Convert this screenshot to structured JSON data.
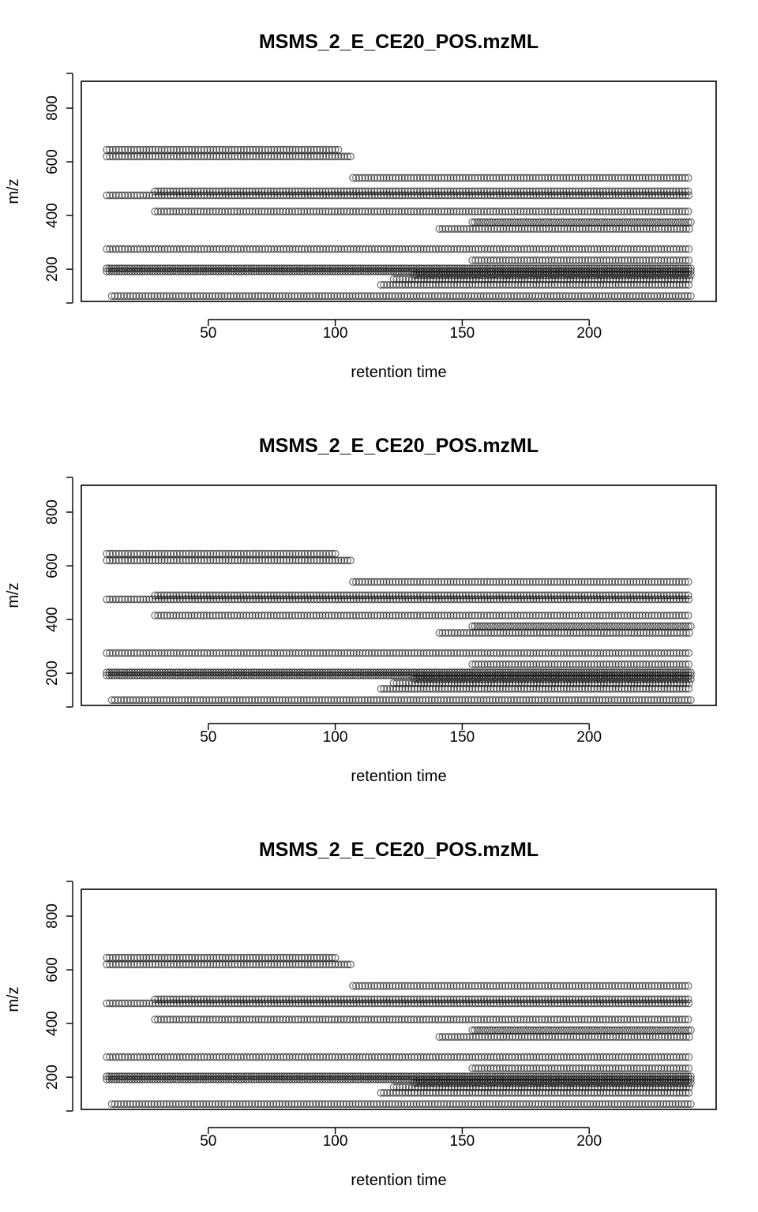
{
  "chart_data": [
    {
      "type": "scatter",
      "title": "MSMS_2_E_CE20_POS.mzML",
      "xlabel": "retention time",
      "ylabel": "m/z",
      "xticks": [
        50,
        100,
        150,
        200
      ],
      "yticks": [
        200,
        400,
        600,
        800
      ],
      "xlim": [
        0,
        250
      ],
      "ylim": [
        80,
        900
      ],
      "grid": false,
      "point_style": "open circle, semi-transparent black",
      "traces": [
        {
          "mz": 645,
          "rt_start": 10,
          "rt_end": 102,
          "rt_step": 1.2
        },
        {
          "mz": 620,
          "rt_start": 10,
          "rt_end": 107,
          "rt_step": 1.2
        },
        {
          "mz": 540,
          "rt_start": 107,
          "rt_end": 240,
          "rt_step": 1.2
        },
        {
          "mz": 490,
          "rt_start": 29,
          "rt_end": 240,
          "rt_step": 1.2
        },
        {
          "mz": 475,
          "rt_start": 10,
          "rt_end": 240,
          "rt_step": 1.2
        },
        {
          "mz": 415,
          "rt_start": 29,
          "rt_end": 240,
          "rt_step": 1.2
        },
        {
          "mz": 375,
          "rt_start": 154,
          "rt_end": 240,
          "rt_step": 1.0
        },
        {
          "mz": 350,
          "rt_start": 141,
          "rt_end": 240,
          "rt_step": 1.2
        },
        {
          "mz": 275,
          "rt_start": 10,
          "rt_end": 240,
          "rt_step": 1.2
        },
        {
          "mz": 233,
          "rt_start": 154,
          "rt_end": 240,
          "rt_step": 1.2
        },
        {
          "mz": 203,
          "rt_start": 10,
          "rt_end": 240,
          "rt_step": 1.0
        },
        {
          "mz": 192,
          "rt_start": 10,
          "rt_end": 240,
          "rt_step": 1.0
        },
        {
          "mz": 178,
          "rt_start": 131,
          "rt_end": 240,
          "rt_step": 1.0
        },
        {
          "mz": 163,
          "rt_start": 123,
          "rt_end": 240,
          "rt_step": 1.2
        },
        {
          "mz": 142,
          "rt_start": 118,
          "rt_end": 240,
          "rt_step": 1.2
        },
        {
          "mz": 100,
          "rt_start": 12,
          "rt_end": 240,
          "rt_step": 1.2
        }
      ]
    },
    {
      "type": "scatter",
      "title": "MSMS_2_E_CE20_POS.mzML",
      "xlabel": "retention time",
      "ylabel": "m/z",
      "xticks": [
        50,
        100,
        150,
        200
      ],
      "yticks": [
        200,
        400,
        600,
        800
      ],
      "xlim": [
        0,
        250
      ],
      "ylim": [
        80,
        900
      ],
      "grid": false,
      "point_style": "open circle, semi-transparent black",
      "traces": [
        {
          "mz": 645,
          "rt_start": 10,
          "rt_end": 101,
          "rt_step": 1.2
        },
        {
          "mz": 620,
          "rt_start": 10,
          "rt_end": 107,
          "rt_step": 1.2
        },
        {
          "mz": 540,
          "rt_start": 107,
          "rt_end": 240,
          "rt_step": 1.2
        },
        {
          "mz": 490,
          "rt_start": 29,
          "rt_end": 240,
          "rt_step": 1.2
        },
        {
          "mz": 475,
          "rt_start": 10,
          "rt_end": 240,
          "rt_step": 1.2
        },
        {
          "mz": 415,
          "rt_start": 29,
          "rt_end": 240,
          "rt_step": 1.2
        },
        {
          "mz": 375,
          "rt_start": 154,
          "rt_end": 240,
          "rt_step": 1.0
        },
        {
          "mz": 350,
          "rt_start": 141,
          "rt_end": 240,
          "rt_step": 1.2
        },
        {
          "mz": 275,
          "rt_start": 10,
          "rt_end": 240,
          "rt_step": 1.2
        },
        {
          "mz": 233,
          "rt_start": 154,
          "rt_end": 240,
          "rt_step": 1.2
        },
        {
          "mz": 203,
          "rt_start": 10,
          "rt_end": 240,
          "rt_step": 1.0
        },
        {
          "mz": 192,
          "rt_start": 10,
          "rt_end": 240,
          "rt_step": 1.0
        },
        {
          "mz": 178,
          "rt_start": 131,
          "rt_end": 240,
          "rt_step": 1.0
        },
        {
          "mz": 163,
          "rt_start": 123,
          "rt_end": 240,
          "rt_step": 1.2
        },
        {
          "mz": 142,
          "rt_start": 118,
          "rt_end": 240,
          "rt_step": 1.2
        },
        {
          "mz": 100,
          "rt_start": 12,
          "rt_end": 240,
          "rt_step": 1.2
        }
      ]
    },
    {
      "type": "scatter",
      "title": "MSMS_2_E_CE20_POS.mzML",
      "xlabel": "retention time",
      "ylabel": "m/z",
      "xticks": [
        50,
        100,
        150,
        200
      ],
      "yticks": [
        200,
        400,
        600,
        800
      ],
      "xlim": [
        0,
        250
      ],
      "ylim": [
        80,
        900
      ],
      "grid": false,
      "point_style": "open circle, semi-transparent black",
      "traces": [
        {
          "mz": 645,
          "rt_start": 10,
          "rt_end": 101,
          "rt_step": 1.2
        },
        {
          "mz": 620,
          "rt_start": 10,
          "rt_end": 107,
          "rt_step": 1.2
        },
        {
          "mz": 540,
          "rt_start": 107,
          "rt_end": 240,
          "rt_step": 1.2
        },
        {
          "mz": 490,
          "rt_start": 29,
          "rt_end": 240,
          "rt_step": 1.2
        },
        {
          "mz": 475,
          "rt_start": 10,
          "rt_end": 240,
          "rt_step": 1.2
        },
        {
          "mz": 415,
          "rt_start": 29,
          "rt_end": 240,
          "rt_step": 1.2
        },
        {
          "mz": 375,
          "rt_start": 154,
          "rt_end": 240,
          "rt_step": 1.0
        },
        {
          "mz": 350,
          "rt_start": 141,
          "rt_end": 240,
          "rt_step": 1.2
        },
        {
          "mz": 275,
          "rt_start": 10,
          "rt_end": 240,
          "rt_step": 1.2
        },
        {
          "mz": 233,
          "rt_start": 154,
          "rt_end": 240,
          "rt_step": 1.2
        },
        {
          "mz": 203,
          "rt_start": 10,
          "rt_end": 240,
          "rt_step": 1.0
        },
        {
          "mz": 192,
          "rt_start": 10,
          "rt_end": 240,
          "rt_step": 1.0
        },
        {
          "mz": 178,
          "rt_start": 131,
          "rt_end": 240,
          "rt_step": 1.0
        },
        {
          "mz": 163,
          "rt_start": 123,
          "rt_end": 240,
          "rt_step": 1.2
        },
        {
          "mz": 142,
          "rt_start": 118,
          "rt_end": 240,
          "rt_step": 1.2
        },
        {
          "mz": 100,
          "rt_start": 12,
          "rt_end": 240,
          "rt_step": 1.2
        }
      ]
    }
  ]
}
